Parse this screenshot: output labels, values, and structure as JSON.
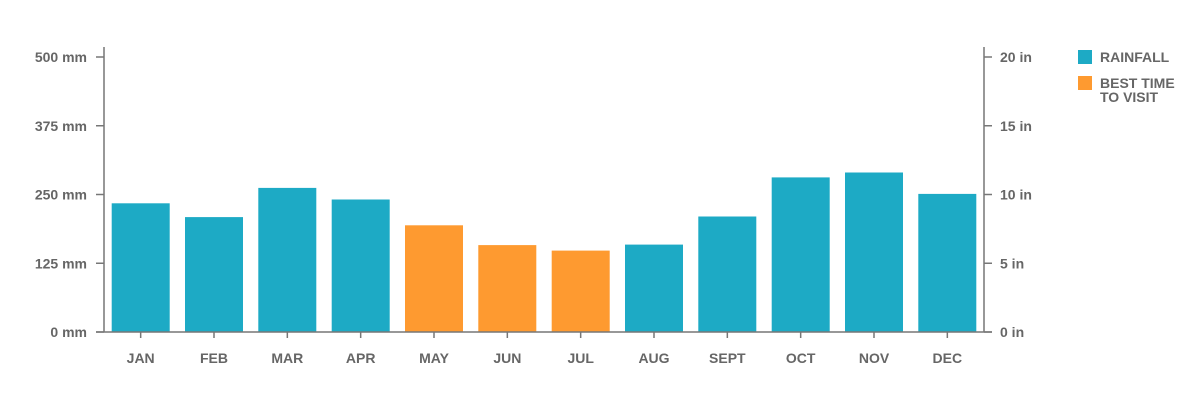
{
  "chart_data": {
    "type": "bar",
    "categories": [
      "JAN",
      "FEB",
      "MAR",
      "APR",
      "MAY",
      "JUN",
      "JUL",
      "AUG",
      "SEPT",
      "OCT",
      "NOV",
      "DEC"
    ],
    "values": [
      234,
      209,
      262,
      241,
      194,
      158,
      148,
      159,
      210,
      281,
      290,
      251
    ],
    "best_time": [
      false,
      false,
      false,
      false,
      true,
      true,
      true,
      false,
      false,
      false,
      false,
      false
    ],
    "y_left": {
      "ticks": [
        0,
        125,
        250,
        375,
        500
      ],
      "tick_labels": [
        "0 mm",
        "125 mm",
        "250 mm",
        "375 mm",
        "500 mm"
      ],
      "ylim": [
        0,
        500
      ]
    },
    "y_right": {
      "ticks": [
        0,
        5,
        10,
        15,
        20
      ],
      "tick_labels": [
        "0 in",
        "5 in",
        "10 in",
        "15 in",
        "20 in"
      ],
      "ylim": [
        0,
        20
      ]
    },
    "grid": false,
    "legend_position": "top-right",
    "legend": [
      {
        "label": "RAINFALL",
        "color": "#1daac5"
      },
      {
        "label": "BEST TIME TO VISIT",
        "color": "#fe9a30"
      }
    ],
    "colors": {
      "rainfall": "#1daac5",
      "best_time": "#fe9a30",
      "axis": "#777777",
      "text": "#666666"
    }
  }
}
